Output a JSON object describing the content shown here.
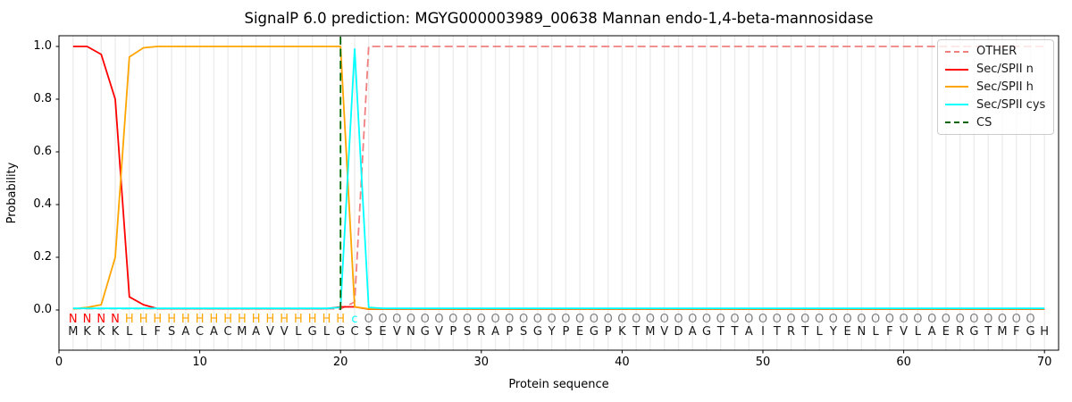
{
  "title": "SignalP 6.0 prediction: MGYG000003989_00638 Mannan endo-1,4-beta-mannosidase",
  "axes": {
    "xlabel": "Protein sequence",
    "ylabel": "Probability",
    "x_ticks": [
      0,
      10,
      20,
      30,
      40,
      50,
      60,
      70
    ],
    "y_ticks": [
      0.0,
      0.2,
      0.4,
      0.6,
      0.8,
      1.0
    ],
    "xlim": [
      0,
      71
    ],
    "ylim": [
      -0.153,
      1.041
    ],
    "grid": "vertical line at every residue position, light gray"
  },
  "chart_data": {
    "type": "line",
    "title": "SignalP 6.0 prediction: MGYG000003989_00638 Mannan endo-1,4-beta-mannosidase",
    "xlabel": "Protein sequence",
    "ylabel": "Probability",
    "x": [
      1,
      2,
      3,
      4,
      5,
      6,
      7,
      8,
      9,
      10,
      11,
      12,
      13,
      14,
      15,
      16,
      17,
      18,
      19,
      20,
      21,
      22,
      23,
      24,
      25,
      26,
      27,
      28,
      29,
      30,
      31,
      32,
      33,
      34,
      35,
      36,
      37,
      38,
      39,
      40,
      41,
      42,
      43,
      44,
      45,
      46,
      47,
      48,
      49,
      50,
      51,
      52,
      53,
      54,
      55,
      56,
      57,
      58,
      59,
      60,
      61,
      62,
      63,
      64,
      65,
      66,
      67,
      68,
      69,
      70
    ],
    "series": [
      {
        "name": "OTHER",
        "color": "#f08080",
        "style": "dashed",
        "values": [
          0.005,
          0.005,
          0.005,
          0.005,
          0.005,
          0.005,
          0.005,
          0.005,
          0.005,
          0.005,
          0.005,
          0.005,
          0.005,
          0.005,
          0.005,
          0.005,
          0.005,
          0.005,
          0.005,
          0.004,
          0.03,
          1.0,
          1.0,
          1.0,
          1.0,
          1.0,
          1.0,
          1.0,
          1.0,
          1.0,
          1.0,
          1.0,
          1.0,
          1.0,
          1.0,
          1.0,
          1.0,
          1.0,
          1.0,
          1.0,
          1.0,
          1.0,
          1.0,
          1.0,
          1.0,
          1.0,
          1.0,
          1.0,
          1.0,
          1.0,
          1.0,
          1.0,
          1.0,
          1.0,
          1.0,
          1.0,
          1.0,
          1.0,
          1.0,
          1.0,
          1.0,
          1.0,
          1.0,
          1.0,
          1.0,
          1.0,
          1.0,
          1.0,
          1.0,
          1.0
        ]
      },
      {
        "name": "Sec/SPII n",
        "color": "#ff0000",
        "style": "solid",
        "values": [
          1.0,
          1.0,
          0.97,
          0.8,
          0.05,
          0.02,
          0.005,
          0.005,
          0.005,
          0.005,
          0.005,
          0.005,
          0.005,
          0.005,
          0.005,
          0.005,
          0.005,
          0.005,
          0.005,
          0.012,
          0.012,
          0.003,
          0.003,
          0.003,
          0.003,
          0.003,
          0.003,
          0.003,
          0.003,
          0.003,
          0.003,
          0.003,
          0.003,
          0.003,
          0.003,
          0.003,
          0.003,
          0.003,
          0.003,
          0.003,
          0.003,
          0.003,
          0.003,
          0.003,
          0.003,
          0.003,
          0.003,
          0.003,
          0.003,
          0.003,
          0.003,
          0.003,
          0.003,
          0.003,
          0.003,
          0.003,
          0.003,
          0.003,
          0.003,
          0.003,
          0.003,
          0.003,
          0.003,
          0.003,
          0.003,
          0.003,
          0.003,
          0.003,
          0.003,
          0.003
        ]
      },
      {
        "name": "Sec/SPII h",
        "color": "#ffa500",
        "style": "solid",
        "values": [
          0.004,
          0.01,
          0.02,
          0.2,
          0.96,
          0.995,
          1.0,
          1.0,
          1.0,
          1.0,
          1.0,
          1.0,
          1.0,
          1.0,
          1.0,
          1.0,
          1.0,
          1.0,
          1.0,
          1.0,
          0.012,
          0.004,
          0.004,
          0.004,
          0.004,
          0.004,
          0.004,
          0.004,
          0.004,
          0.004,
          0.004,
          0.004,
          0.004,
          0.004,
          0.004,
          0.004,
          0.004,
          0.004,
          0.004,
          0.004,
          0.004,
          0.004,
          0.004,
          0.004,
          0.004,
          0.004,
          0.004,
          0.004,
          0.004,
          0.004,
          0.004,
          0.004,
          0.004,
          0.004,
          0.004,
          0.004,
          0.004,
          0.004,
          0.004,
          0.004,
          0.004,
          0.004,
          0.004,
          0.004,
          0.004,
          0.004,
          0.004,
          0.004,
          0.004,
          0.004
        ]
      },
      {
        "name": "Sec/SPII cys",
        "color": "#00ffff",
        "style": "solid",
        "values": [
          0.006,
          0.006,
          0.006,
          0.006,
          0.006,
          0.006,
          0.006,
          0.006,
          0.006,
          0.006,
          0.006,
          0.006,
          0.006,
          0.006,
          0.006,
          0.006,
          0.006,
          0.006,
          0.006,
          0.01,
          0.99,
          0.01,
          0.006,
          0.006,
          0.006,
          0.006,
          0.006,
          0.006,
          0.006,
          0.006,
          0.006,
          0.006,
          0.006,
          0.006,
          0.006,
          0.006,
          0.006,
          0.006,
          0.006,
          0.006,
          0.006,
          0.006,
          0.006,
          0.006,
          0.006,
          0.006,
          0.006,
          0.006,
          0.006,
          0.006,
          0.006,
          0.006,
          0.006,
          0.006,
          0.006,
          0.006,
          0.006,
          0.006,
          0.006,
          0.006,
          0.006,
          0.006,
          0.006,
          0.006,
          0.006,
          0.006,
          0.006,
          0.006,
          0.006,
          0.006
        ]
      }
    ],
    "cs_marker": {
      "name": "CS",
      "color": "#006400",
      "style": "dashed",
      "x": 20,
      "y_from": 0.0,
      "y_to": 1.041
    }
  },
  "legend": {
    "position": "upper right",
    "entries": [
      {
        "label": "OTHER",
        "color": "#f08080",
        "style": "dashed"
      },
      {
        "label": "Sec/SPII n",
        "color": "#ff0000",
        "style": "solid"
      },
      {
        "label": "Sec/SPII h",
        "color": "#ffa500",
        "style": "solid"
      },
      {
        "label": "Sec/SPII cys",
        "color": "#00ffff",
        "style": "solid"
      },
      {
        "label": "CS",
        "color": "#006400",
        "style": "dashed"
      }
    ]
  },
  "sequence": {
    "residues": "MKKKLLFSACACMAVVLGLGCSEVNGVPSRAPSGYPEGPKTMVDAGTTAITRTLYENLFVLAERGTMFGH",
    "annotation": "NNNNHHHHHHHHHHHHHHHHcOOOOOOOOOOOOOOOOOOOOOOOOOOOOOOOOOOOOOOOOOOOOOOOO",
    "annotation_colors": {
      "N": "#ff0000",
      "H": "#ffa500",
      "c": "#00ffff",
      "O": "#7f7f7f"
    },
    "residue_color": "#1a1a1a"
  },
  "style_colors": {
    "grid": "#ececec",
    "spine": "#000000",
    "legend_border": "#cccccc"
  }
}
